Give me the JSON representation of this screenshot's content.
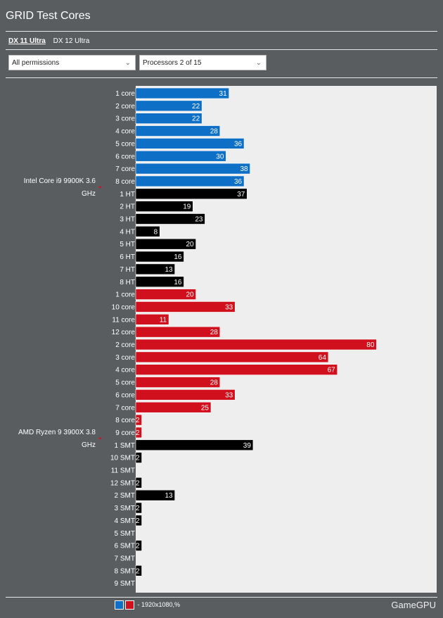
{
  "header": {
    "title": "GRID Test Cores"
  },
  "tabs": [
    {
      "label": "DX 11 Ultra",
      "active": true
    },
    {
      "label": "DX 12 Ultra",
      "active": false
    }
  ],
  "filters": {
    "permissions": "All permissions",
    "processors": "Processors 2 of 15"
  },
  "legend": {
    "label": "- 1920x1080,%",
    "colors": [
      "#0d6fc6",
      "#d0101c"
    ]
  },
  "brand": "GameGPU",
  "colors": {
    "blue": "#0d6fc6",
    "red": "#d0101c",
    "black": "#000000",
    "plot_bg": "#eeeeee"
  },
  "chart_data": {
    "type": "bar",
    "orientation": "horizontal",
    "title": "GRID Test Cores",
    "xlim": [
      0,
      100
    ],
    "groups": [
      {
        "name": "Intel Core i9 9900K 3.6 GHz",
        "bars": [
          {
            "label": "1 core",
            "value": 31,
            "color": "blue"
          },
          {
            "label": "2 core",
            "value": 22,
            "color": "blue"
          },
          {
            "label": "3 core",
            "value": 22,
            "color": "blue"
          },
          {
            "label": "4 core",
            "value": 28,
            "color": "blue"
          },
          {
            "label": "5 core",
            "value": 36,
            "color": "blue"
          },
          {
            "label": "6 core",
            "value": 30,
            "color": "blue"
          },
          {
            "label": "7 core",
            "value": 38,
            "color": "blue"
          },
          {
            "label": "8 core",
            "value": 36,
            "color": "blue"
          },
          {
            "label": "1 HT",
            "value": 37,
            "color": "black"
          },
          {
            "label": "2 HT",
            "value": 19,
            "color": "black"
          },
          {
            "label": "3 HT",
            "value": 23,
            "color": "black"
          },
          {
            "label": "4 HT",
            "value": 8,
            "color": "black"
          },
          {
            "label": "5 HT",
            "value": 20,
            "color": "black"
          },
          {
            "label": "6 HT",
            "value": 16,
            "color": "black"
          },
          {
            "label": "7 HT",
            "value": 13,
            "color": "black"
          },
          {
            "label": "8 HT",
            "value": 16,
            "color": "black"
          }
        ]
      },
      {
        "name": "AMD Ryzen 9 3900X 3.8 GHz",
        "bars": [
          {
            "label": "1 core",
            "value": 20,
            "color": "red"
          },
          {
            "label": "10 core",
            "value": 33,
            "color": "red"
          },
          {
            "label": "11 core",
            "value": 11,
            "color": "red"
          },
          {
            "label": "12 core",
            "value": 28,
            "color": "red"
          },
          {
            "label": "2 core",
            "value": 80,
            "color": "red"
          },
          {
            "label": "3 core",
            "value": 64,
            "color": "red"
          },
          {
            "label": "4 core",
            "value": 67,
            "color": "red"
          },
          {
            "label": "5 core",
            "value": 28,
            "color": "red"
          },
          {
            "label": "6 core",
            "value": 33,
            "color": "red"
          },
          {
            "label": "7 core",
            "value": 25,
            "color": "red"
          },
          {
            "label": "8 core",
            "value": 2,
            "color": "red"
          },
          {
            "label": "9 core",
            "value": 2,
            "color": "red"
          },
          {
            "label": "1 SMT",
            "value": 39,
            "color": "black"
          },
          {
            "label": "10 SMT",
            "value": 2,
            "color": "black"
          },
          {
            "label": "11 SMT",
            "value": 0,
            "color": "black"
          },
          {
            "label": "12 SMT",
            "value": 2,
            "color": "black"
          },
          {
            "label": "2 SMT",
            "value": 13,
            "color": "black"
          },
          {
            "label": "3 SMT",
            "value": 2,
            "color": "black"
          },
          {
            "label": "4 SMT",
            "value": 2,
            "color": "black"
          },
          {
            "label": "5 SMT",
            "value": 0,
            "color": "black"
          },
          {
            "label": "6 SMT",
            "value": 2,
            "color": "black"
          },
          {
            "label": "7 SMT",
            "value": 0,
            "color": "black"
          },
          {
            "label": "8 SMT",
            "value": 2,
            "color": "black"
          },
          {
            "label": "9 SMT",
            "value": 0,
            "color": "black"
          }
        ]
      }
    ]
  }
}
